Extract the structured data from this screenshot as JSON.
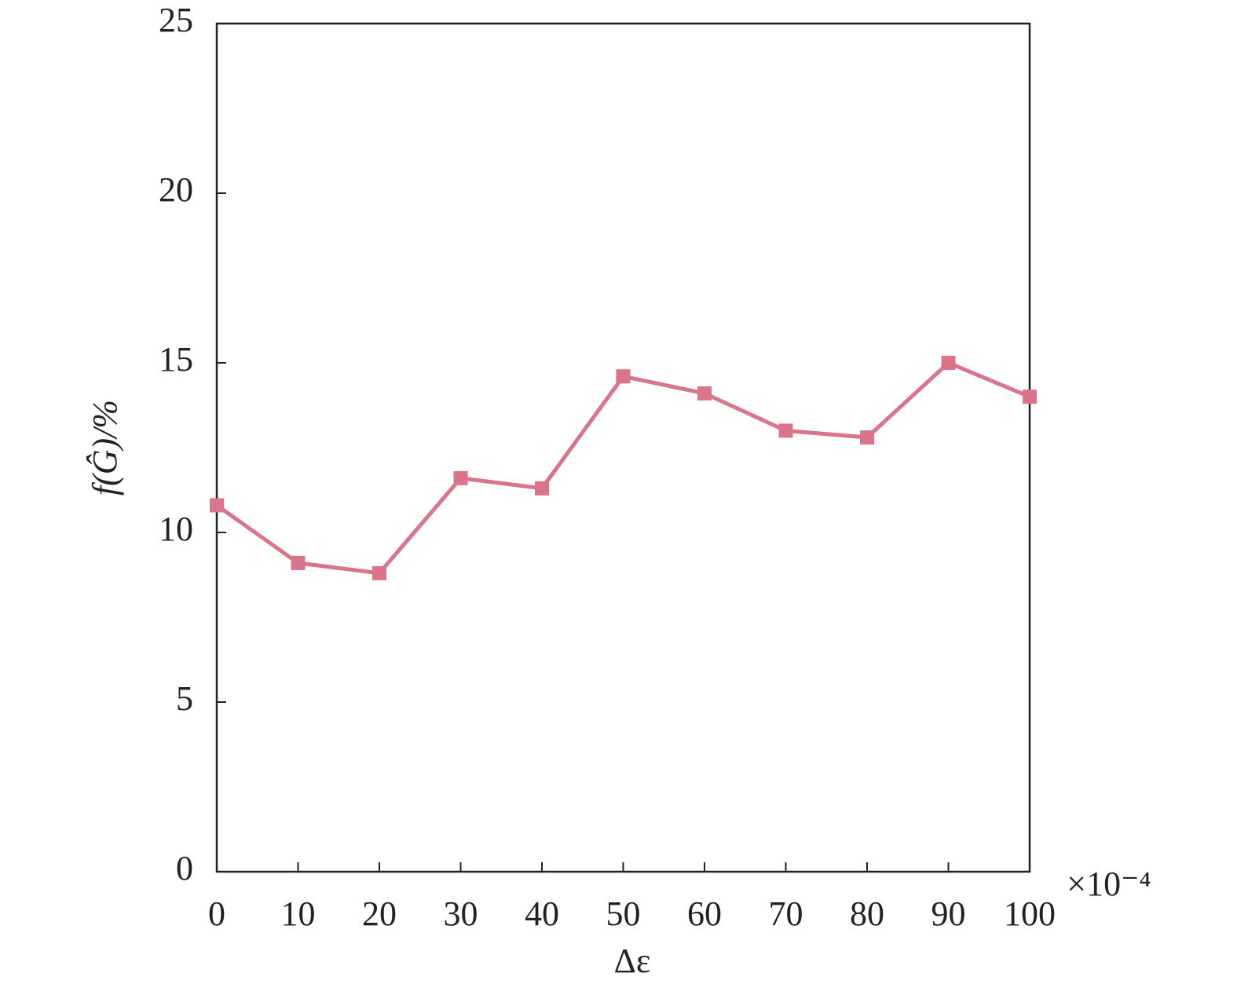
{
  "chart_data": {
    "type": "line",
    "x_label": "Δε",
    "y_label": "f(Ĝ)/%",
    "x_multiplier": "×10⁻⁴",
    "x": [
      0,
      10,
      20,
      30,
      40,
      50,
      60,
      70,
      80,
      90,
      100
    ],
    "series": [
      {
        "color": "#d9748b",
        "values": [
          10.8,
          9.1,
          8.8,
          11.6,
          11.3,
          14.6,
          14.1,
          13.0,
          12.8,
          15.0,
          14.0
        ]
      }
    ],
    "xlim": [
      0,
      100
    ],
    "xticks": [
      0,
      10,
      20,
      30,
      40,
      50,
      60,
      70,
      80,
      90,
      100
    ],
    "ylim": [
      0,
      25
    ],
    "yticks": [
      0,
      5,
      10,
      15,
      20,
      25
    ],
    "grid": false
  }
}
